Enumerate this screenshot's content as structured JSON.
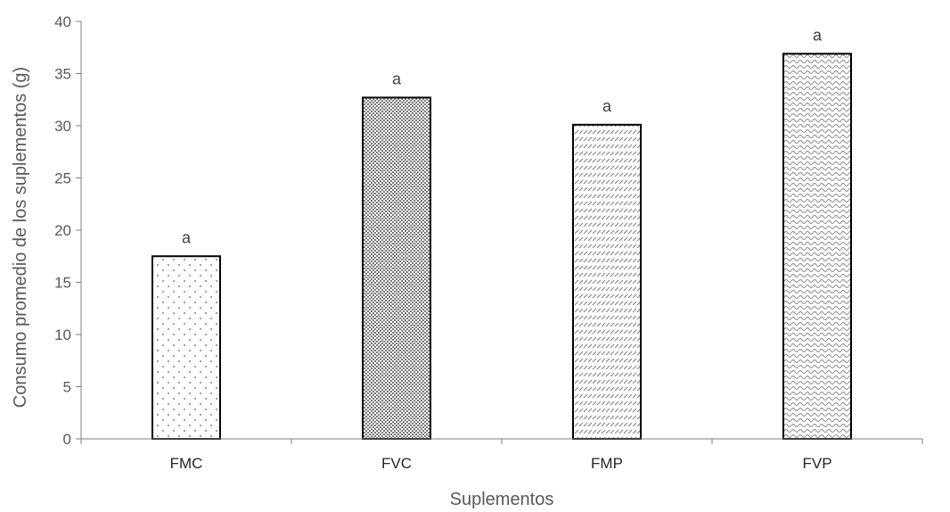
{
  "chart_data": {
    "type": "bar",
    "title": "",
    "xlabel": "Suplementos",
    "ylabel": "Consumo promedio de los suplementos (g)",
    "categories": [
      "FMC",
      "FVC",
      "FMP",
      "FVP"
    ],
    "values": [
      17.5,
      32.7,
      30.1,
      36.9
    ],
    "data_labels": [
      "a",
      "a",
      "a",
      "a"
    ],
    "ylim": [
      0,
      40
    ],
    "yticks": [
      0,
      5,
      10,
      15,
      20,
      25,
      30,
      35,
      40
    ],
    "grid": false,
    "legend": "none",
    "bar_fill_patterns": [
      "sparse-dots",
      "dense-checker",
      "diagonal-dash",
      "wave"
    ],
    "colors": {
      "bar_outline": "#000000",
      "pattern": "#8c8c8c",
      "axis": "#7f7f7f"
    }
  }
}
